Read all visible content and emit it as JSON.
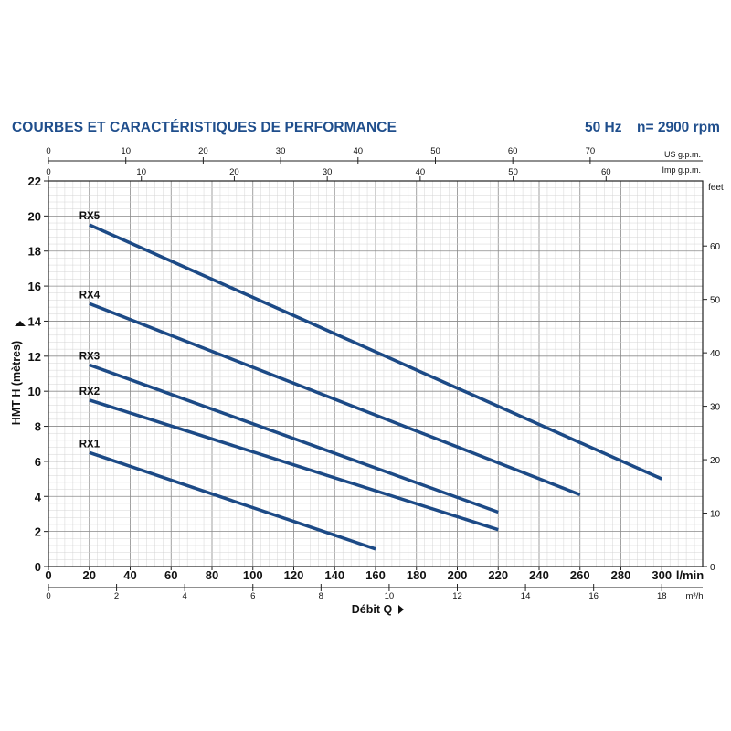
{
  "header": {
    "title": "COURBES ET CARACTÉRISTIQUES DE PERFORMANCE",
    "frequency": "50 Hz",
    "speed": "n= 2900 rpm"
  },
  "colors": {
    "title": "#1f4e8c",
    "curve": "#1c4a86",
    "grid_minor": "#d4d4d4",
    "grid_major": "#8a8a8a",
    "axis": "#222222"
  },
  "chart_data": {
    "type": "line",
    "title": "",
    "xlabel": "Débit Q",
    "ylabel": "HMT H (mètres)",
    "x_unit": "l/min",
    "xlim": [
      0,
      320
    ],
    "ylim": [
      0,
      22
    ],
    "x_ticks": [
      0,
      20,
      40,
      60,
      80,
      100,
      120,
      140,
      160,
      180,
      200,
      220,
      240,
      260,
      280,
      300
    ],
    "y_ticks": [
      0,
      2,
      4,
      6,
      8,
      10,
      12,
      14,
      16,
      18,
      20,
      22
    ],
    "grid": true,
    "series": [
      {
        "name": "RX1",
        "x": [
          20,
          160
        ],
        "y": [
          6.5,
          1.0
        ]
      },
      {
        "name": "RX2",
        "x": [
          20,
          220
        ],
        "y": [
          9.5,
          2.1
        ]
      },
      {
        "name": "RX3",
        "x": [
          20,
          220
        ],
        "y": [
          11.5,
          3.1
        ]
      },
      {
        "name": "RX4",
        "x": [
          20,
          260
        ],
        "y": [
          15.0,
          4.1
        ]
      },
      {
        "name": "RX5",
        "x": [
          20,
          300
        ],
        "y": [
          19.5,
          5.0
        ]
      }
    ],
    "secondary_axes": {
      "top_us_gpm": {
        "label": "US g.p.m.",
        "ticks": [
          0,
          10,
          20,
          30,
          40,
          50,
          60,
          70
        ]
      },
      "top_imp_gpm": {
        "label": "Imp g.p.m.",
        "ticks": [
          0,
          10,
          20,
          30,
          40,
          50,
          60
        ]
      },
      "bottom_m3h": {
        "label": "m³/h",
        "ticks": [
          0,
          2,
          4,
          6,
          8,
          10,
          12,
          14,
          16,
          18
        ]
      },
      "right_feet": {
        "label": "feet",
        "ticks": [
          0,
          10,
          20,
          30,
          40,
          50,
          60
        ]
      }
    }
  }
}
